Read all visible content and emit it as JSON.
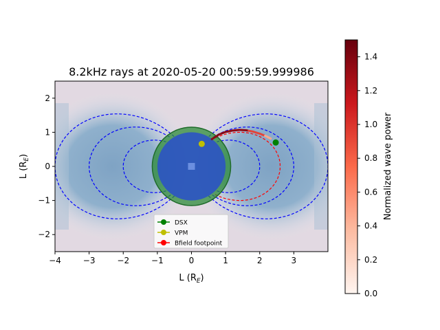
{
  "chart_data": {
    "type": "scatter",
    "title": "8.2kHz rays at 2020-05-20 00:59:59.999986",
    "xlabel_main": "L (R",
    "xlabel_sub": "E",
    "xlabel_end": ")",
    "ylabel_main": "L (R",
    "ylabel_sub": "E",
    "ylabel_end": ")",
    "xlim": [
      -4,
      4
    ],
    "ylim": [
      -2.5,
      2.5
    ],
    "xticks": [
      -4,
      -3,
      -2,
      -1,
      0,
      1,
      2,
      3
    ],
    "yticks": [
      -2,
      -1,
      0,
      1,
      2
    ],
    "xtick_labels": [
      "−4",
      "−3",
      "−2",
      "−1",
      "0",
      "1",
      "2",
      "3"
    ],
    "ytick_labels": [
      "−2",
      "−1",
      "0",
      "1",
      "2"
    ],
    "earth_radius": 1.0,
    "shell_radius": 1.15,
    "fieldlines_L": [
      2,
      3,
      4
    ],
    "fieldline_color": "#0000ff",
    "bfield_line_L": 2.6,
    "legend": {
      "placement": "lower-center",
      "entries": [
        {
          "label": "DSX",
          "color": "#008000"
        },
        {
          "label": "VPM",
          "color": "#bfbf00"
        },
        {
          "label": "Bfield footpoint",
          "color": "#ff0000"
        }
      ]
    },
    "points": {
      "DSX": {
        "x": 2.47,
        "y": 0.7
      },
      "VPM": {
        "x": 0.3,
        "y": 0.66
      }
    },
    "ray_path": {
      "x": [
        0.6,
        0.8,
        1.0,
        1.2,
        1.4,
        1.6,
        1.8,
        2.0,
        2.2,
        2.35
      ],
      "y": [
        0.8,
        0.93,
        1.01,
        1.05,
        1.07,
        1.06,
        1.02,
        0.96,
        0.88,
        0.8
      ]
    },
    "colorbar": {
      "label": "Normalized wave power",
      "range": [
        0,
        1.5
      ],
      "ticks": [
        0.0,
        0.2,
        0.4,
        0.6,
        0.8,
        1.0,
        1.2,
        1.4
      ],
      "tick_labels": [
        "0.0",
        "0.2",
        "0.4",
        "0.6",
        "0.8",
        "1.0",
        "1.2",
        "1.4"
      ],
      "colors": [
        "#fff5f0",
        "#fcbba1",
        "#fb6a4a",
        "#cb181d",
        "#67000d"
      ]
    }
  }
}
